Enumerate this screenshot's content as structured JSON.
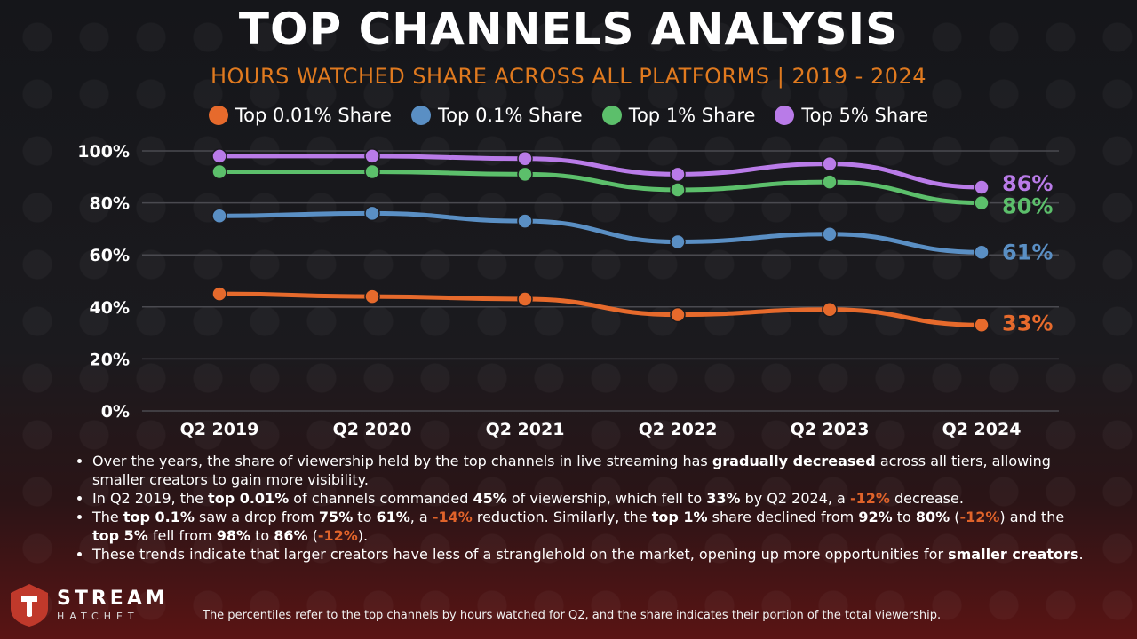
{
  "header": {
    "title": "TOP CHANNELS ANALYSIS",
    "subtitle": "HOURS WATCHED SHARE ACROSS ALL PLATFORMS | 2019 - 2024"
  },
  "chart_data": {
    "type": "line",
    "categories": [
      "Q2 2019",
      "Q2 2020",
      "Q2 2021",
      "Q2 2022",
      "Q2 2023",
      "Q2 2024"
    ],
    "ylim": [
      0,
      100
    ],
    "yticks": [
      "0%",
      "20%",
      "40%",
      "60%",
      "80%",
      "100%"
    ],
    "grid": true,
    "legend_position": "top-center",
    "series": [
      {
        "name": "Top 0.01% Share",
        "color": "#e66a2c",
        "values": [
          45,
          44,
          43,
          37,
          39,
          33
        ],
        "end_label": "33%"
      },
      {
        "name": "Top 0.1% Share",
        "color": "#5a8fc4",
        "values": [
          75,
          76,
          73,
          65,
          68,
          61
        ],
        "end_label": "61%"
      },
      {
        "name": "Top 1% Share",
        "color": "#5cbf6b",
        "values": [
          92,
          92,
          91,
          85,
          88,
          80
        ],
        "end_label": "80%"
      },
      {
        "name": "Top 5% Share",
        "color": "#b97be8",
        "values": [
          98,
          98,
          97,
          91,
          95,
          86
        ],
        "end_label": "86%"
      }
    ]
  },
  "bullets": [
    {
      "segments": [
        {
          "t": "Over the years, the share of viewership held by the top channels in live streaming has "
        },
        {
          "t": "gradually decreased",
          "b": true
        },
        {
          "t": " across all tiers, allowing smaller creators to gain more visibility."
        }
      ]
    },
    {
      "segments": [
        {
          "t": "In Q2 2019, the "
        },
        {
          "t": "top 0.01%",
          "b": true
        },
        {
          "t": " of channels commanded "
        },
        {
          "t": "45%",
          "b": true
        },
        {
          "t": " of viewership, which fell to "
        },
        {
          "t": "33%",
          "b": true
        },
        {
          "t": " by Q2 2024, a "
        },
        {
          "t": "-12%",
          "neg": true
        },
        {
          "t": " decrease."
        }
      ]
    },
    {
      "segments": [
        {
          "t": "The "
        },
        {
          "t": "top 0.1%",
          "b": true
        },
        {
          "t": " saw a drop from "
        },
        {
          "t": "75%",
          "b": true
        },
        {
          "t": " to "
        },
        {
          "t": "61%",
          "b": true
        },
        {
          "t": ", a "
        },
        {
          "t": "-14%",
          "neg": true
        },
        {
          "t": " reduction. Similarly, the "
        },
        {
          "t": "top 1%",
          "b": true
        },
        {
          "t": " share declined from "
        },
        {
          "t": "92%",
          "b": true
        },
        {
          "t": " to "
        },
        {
          "t": "80%",
          "b": true
        },
        {
          "t": " ("
        },
        {
          "t": "-12%",
          "neg": true
        },
        {
          "t": ") and the "
        },
        {
          "t": "top 5%",
          "b": true
        },
        {
          "t": " fell from "
        },
        {
          "t": "98%",
          "b": true
        },
        {
          "t": " to "
        },
        {
          "t": "86%",
          "b": true
        },
        {
          "t": " ("
        },
        {
          "t": "-12%",
          "neg": true
        },
        {
          "t": ")."
        }
      ]
    },
    {
      "segments": [
        {
          "t": "These trends indicate that larger creators have less of a stranglehold on the market, opening up more opportunities for "
        },
        {
          "t": "smaller creators",
          "b": true
        },
        {
          "t": "."
        }
      ]
    }
  ],
  "brand": {
    "name_top": "STREAM",
    "name_bottom": "HATCHET"
  },
  "footnote": "The percentiles refer to the top channels by hours watched for Q2, and the share indicates their portion of the total viewership."
}
